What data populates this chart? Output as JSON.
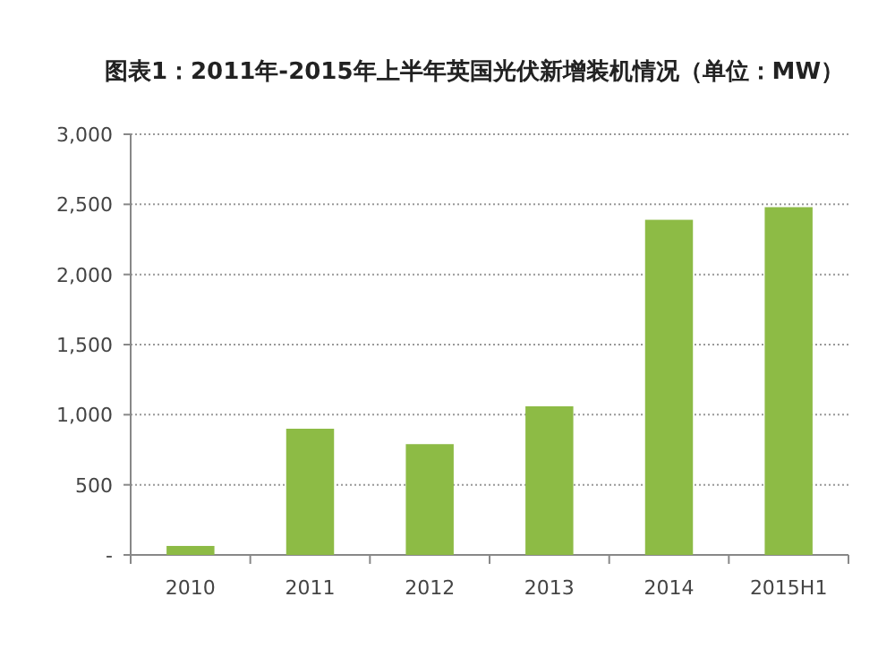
{
  "chart_data": {
    "type": "bar",
    "title": "图表1：2011年-2015年上半年英国光伏新增装机情况（单位：MW）",
    "categories": [
      "2010",
      "2011",
      "2012",
      "2013",
      "2014",
      "2015H1"
    ],
    "series": [
      {
        "color": "#8dbb45",
        "values": [
          64,
          900,
          790,
          1060,
          2390,
          2480
        ]
      }
    ],
    "ylim": [
      0,
      3000
    ],
    "yticks": [
      {
        "value": 0,
        "label": "-"
      },
      {
        "value": 500,
        "label": "500"
      },
      {
        "value": 1000,
        "label": "1,000"
      },
      {
        "value": 1500,
        "label": "1,500"
      },
      {
        "value": 2000,
        "label": "2,000"
      },
      {
        "value": 2500,
        "label": "2,500"
      },
      {
        "value": 3000,
        "label": "3,000"
      }
    ],
    "grid": "y"
  }
}
